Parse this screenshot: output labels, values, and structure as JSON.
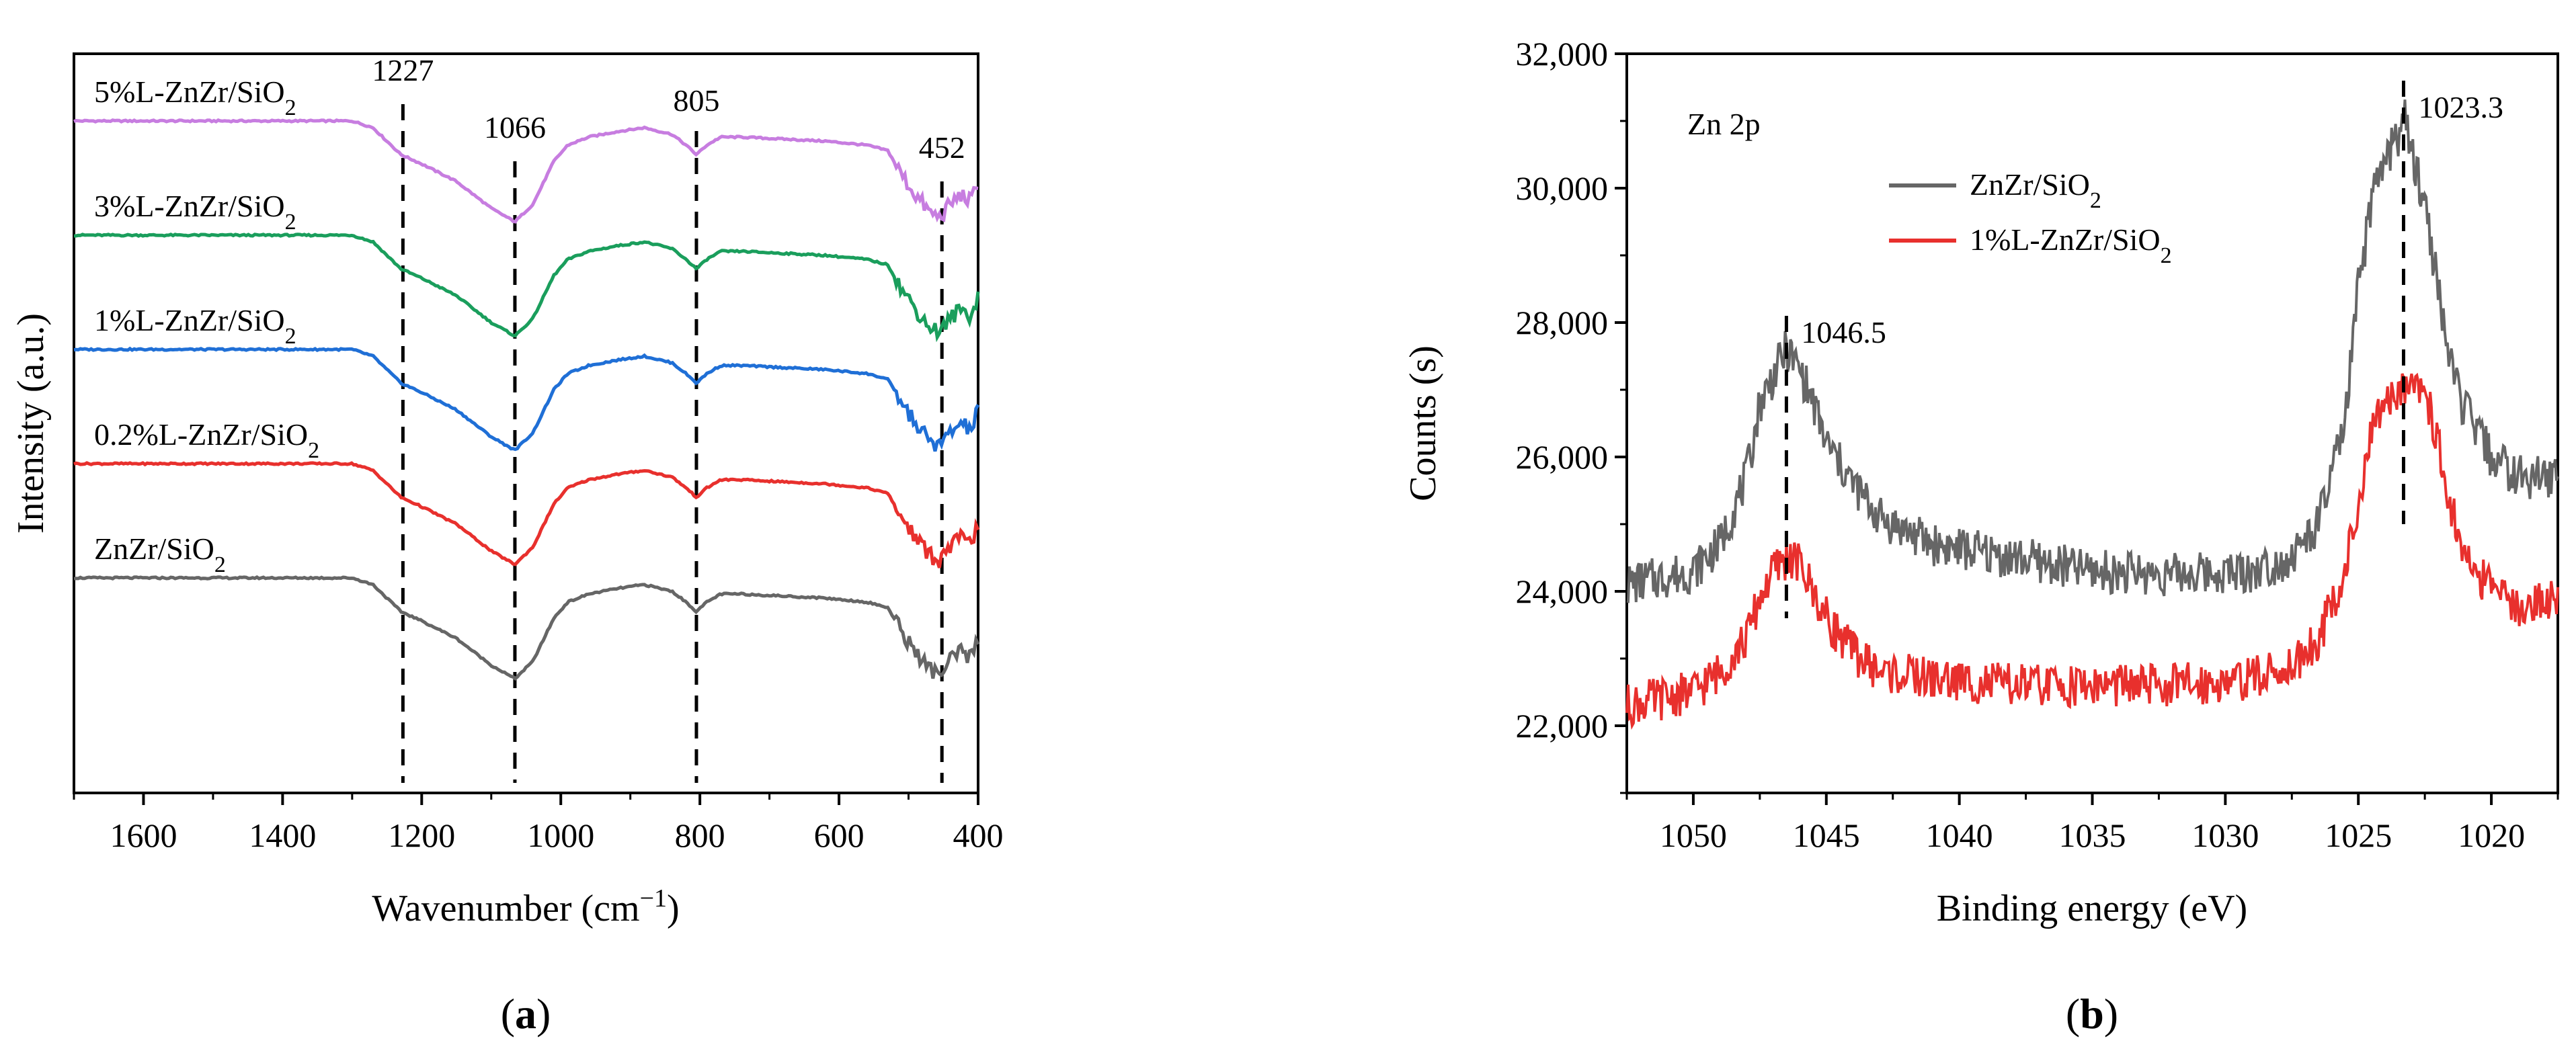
{
  "chart_data": [
    {
      "panel": "a",
      "type": "line",
      "title": "",
      "panel_label": "(a)",
      "xlabel": "Wavenumber (cm−1)",
      "ylabel": "Intensity (a.u.)",
      "xlim": [
        1700,
        400
      ],
      "ylim": [
        -3.55,
        1.95
      ],
      "x_reversed": true,
      "grid": false,
      "x_ticks": [
        1600,
        1400,
        1200,
        1000,
        800,
        600,
        400
      ],
      "annotation_lines": [
        {
          "x": 1227,
          "label": "1227"
        },
        {
          "x": 1066,
          "label": "1066"
        },
        {
          "x": 805,
          "label": "805"
        },
        {
          "x": 452,
          "label": "452"
        }
      ],
      "series": [
        {
          "name": "5%L-ZnZr/SiO2",
          "name_text": "5%L-ZnZr/SiO",
          "subscript": "2",
          "color": "#c77de0",
          "offset": 1.45
        },
        {
          "name": "3%L-ZnZr/SiO2",
          "name_text": "3%L-ZnZr/SiO",
          "subscript": "2",
          "color": "#1a9e5c",
          "offset": 0.6
        },
        {
          "name": "1%L-ZnZr/SiO2",
          "name_text": "1%L-ZnZr/SiO",
          "subscript": "2",
          "color": "#1f6fd6",
          "offset": -0.25
        },
        {
          "name": "0.2%L-ZnZr/SiO2",
          "name_text": "0.2%L-ZnZr/SiO",
          "subscript": "2",
          "color": "#e8302d",
          "offset": -1.1
        },
        {
          "name": "ZnZr/SiO2",
          "name_text": "ZnZr/SiO",
          "subscript": "2",
          "color": "#666666",
          "offset": -1.95
        }
      ],
      "profile": {
        "x": [
          1700,
          1300,
          1270,
          1230,
          1200,
          1150,
          1100,
          1066,
          1040,
          1010,
          990,
          960,
          920,
          880,
          840,
          820,
          805,
          790,
          770,
          740,
          700,
          620,
          560,
          530,
          510,
          490,
          470,
          455,
          440,
          425,
          410,
          400
        ],
        "y": [
          0,
          0,
          -0.05,
          -0.25,
          -0.32,
          -0.45,
          -0.65,
          -0.75,
          -0.62,
          -0.3,
          -0.18,
          -0.12,
          -0.08,
          -0.05,
          -0.1,
          -0.18,
          -0.25,
          -0.18,
          -0.12,
          -0.12,
          -0.13,
          -0.15,
          -0.18,
          -0.22,
          -0.4,
          -0.55,
          -0.68,
          -0.72,
          -0.62,
          -0.55,
          -0.6,
          -0.45
        ]
      }
    },
    {
      "panel": "b",
      "type": "line",
      "title": "Zn 2p",
      "panel_label": "(b)",
      "xlabel": "Binding energy (eV)",
      "ylabel": "Counts (s)",
      "xlim": [
        1052.5,
        1017.5
      ],
      "ylim": [
        21000,
        32000
      ],
      "x_reversed": true,
      "grid": false,
      "x_ticks": [
        1050,
        1045,
        1040,
        1035,
        1030,
        1025,
        1020
      ],
      "y_ticks": [
        22000,
        24000,
        26000,
        28000,
        30000,
        32000
      ],
      "y_tick_labels": [
        "22,000",
        "24,000",
        "26,000",
        "28,000",
        "30,000",
        "32,000"
      ],
      "legend_position": "top-center",
      "peak_annotations": [
        {
          "x": 1046.5,
          "label": "1046.5",
          "y_top": 28100,
          "y_bottom": 23600
        },
        {
          "x": 1023.3,
          "label": "1023.3",
          "y_top": 31600,
          "y_bottom": 25000
        }
      ],
      "series": [
        {
          "name": "ZnZr/SiO2",
          "name_text": "ZnZr/SiO",
          "subscript": "2",
          "color": "#666666",
          "x": [
            1052.5,
            1050,
            1049,
            1048,
            1047.5,
            1047,
            1046.5,
            1046,
            1045.5,
            1045,
            1044,
            1043,
            1041,
            1038,
            1035,
            1032,
            1029,
            1027.5,
            1026.5,
            1025.5,
            1025,
            1024.5,
            1024,
            1023.5,
            1023.3,
            1023,
            1022.5,
            1022,
            1021.5,
            1021,
            1020,
            1019,
            1017.5
          ],
          "y": [
            24100,
            24300,
            24700,
            25700,
            26800,
            27200,
            27600,
            27300,
            26800,
            26200,
            25600,
            25100,
            24700,
            24500,
            24300,
            24250,
            24300,
            24500,
            25000,
            26500,
            28500,
            29800,
            30400,
            30800,
            31100,
            30500,
            29800,
            28500,
            27300,
            26700,
            26000,
            25700,
            25700
          ]
        },
        {
          "name": "1%L-ZnZr/SiO2",
          "name_text": "1%L-ZnZr/SiO",
          "subscript": "2",
          "color": "#e8302d",
          "x": [
            1052.5,
            1050,
            1049,
            1048,
            1047.5,
            1047,
            1046.5,
            1046,
            1045.5,
            1045,
            1044,
            1043,
            1041,
            1038,
            1035,
            1032,
            1029,
            1027.5,
            1026.5,
            1025.5,
            1025,
            1024.5,
            1024,
            1023.5,
            1023.3,
            1023,
            1022.5,
            1022,
            1021.5,
            1021,
            1020,
            1019,
            1017.5
          ],
          "y": [
            22300,
            22500,
            22800,
            23300,
            23900,
            24300,
            24500,
            24400,
            24000,
            23600,
            23100,
            22800,
            22700,
            22600,
            22600,
            22600,
            22700,
            22900,
            23300,
            24300,
            25300,
            26300,
            26800,
            27000,
            27100,
            27200,
            27000,
            26200,
            25200,
            24500,
            24000,
            23800,
            23900
          ]
        }
      ]
    }
  ]
}
